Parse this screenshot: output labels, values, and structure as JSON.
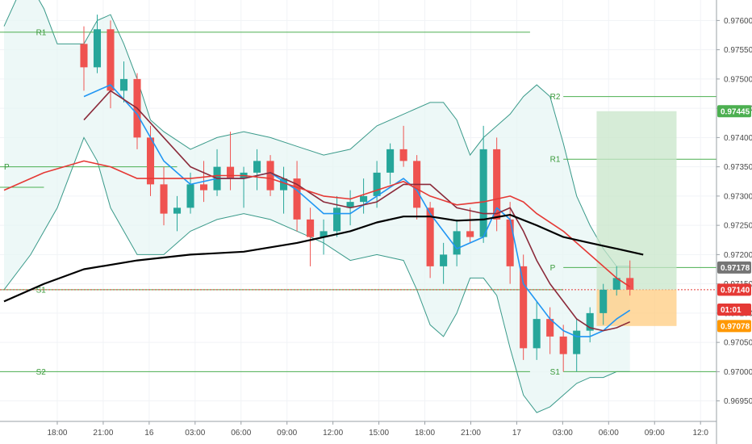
{
  "chart_data": {
    "type": "candlestick",
    "x_ticks": [
      "18:00",
      "21:00",
      "16",
      "03:00",
      "06:00",
      "09:00",
      "12:00",
      "15:00",
      "18:00",
      "21:00",
      "17",
      "03:00",
      "06:00",
      "09:00",
      "12:0"
    ],
    "y_ticks": [
      "0.97600",
      "0.97550",
      "0.97500",
      "0.97450",
      "0.97400",
      "0.97350",
      "0.97300",
      "0.97250",
      "0.97200",
      "0.97150",
      "0.97100",
      "0.97050",
      "0.97000",
      "0.96950"
    ],
    "ylim": [
      0.96915,
      0.97635
    ],
    "x_domain": [
      -6.3,
      47.5
    ],
    "candles": [
      [
        0,
        0.9756,
        0.9759,
        0.9748,
        0.9752
      ],
      [
        1,
        0.9752,
        0.9761,
        0.9751,
        0.97585
      ],
      [
        2,
        0.97585,
        0.976,
        0.9745,
        0.9748
      ],
      [
        3,
        0.9748,
        0.9753,
        0.9746,
        0.975
      ],
      [
        4,
        0.975,
        0.9751,
        0.9738,
        0.974
      ],
      [
        5,
        0.974,
        0.9742,
        0.973,
        0.9732
      ],
      [
        6,
        0.9732,
        0.9735,
        0.9725,
        0.9727
      ],
      [
        7,
        0.9727,
        0.973,
        0.9724,
        0.9728
      ],
      [
        8,
        0.9728,
        0.9734,
        0.9727,
        0.9732
      ],
      [
        9,
        0.9732,
        0.9736,
        0.9729,
        0.9731
      ],
      [
        10,
        0.9731,
        0.9738,
        0.973,
        0.9735
      ],
      [
        11,
        0.9735,
        0.9741,
        0.9731,
        0.9733
      ],
      [
        12,
        0.9733,
        0.9735,
        0.9728,
        0.9734
      ],
      [
        13,
        0.9734,
        0.9738,
        0.9731,
        0.9736
      ],
      [
        14,
        0.9736,
        0.9737,
        0.973,
        0.9731
      ],
      [
        15,
        0.9731,
        0.9735,
        0.9727,
        0.9733
      ],
      [
        16,
        0.9733,
        0.9736,
        0.9724,
        0.9726
      ],
      [
        17,
        0.9726,
        0.9728,
        0.9718,
        0.9723
      ],
      [
        18,
        0.9723,
        0.9726,
        0.972,
        0.9724
      ],
      [
        19,
        0.9724,
        0.973,
        0.9723,
        0.9728
      ],
      [
        20,
        0.9728,
        0.9731,
        0.9725,
        0.9729
      ],
      [
        21,
        0.9729,
        0.9733,
        0.9727,
        0.973
      ],
      [
        22,
        0.973,
        0.9736,
        0.9728,
        0.9734
      ],
      [
        23,
        0.9734,
        0.9739,
        0.9732,
        0.9738
      ],
      [
        24,
        0.9738,
        0.9742,
        0.9735,
        0.9736
      ],
      [
        25,
        0.9736,
        0.9737,
        0.9726,
        0.9728
      ],
      [
        26,
        0.9728,
        0.9729,
        0.9716,
        0.9718
      ],
      [
        27,
        0.9718,
        0.9722,
        0.9715,
        0.972
      ],
      [
        28,
        0.972,
        0.9726,
        0.9718,
        0.9724
      ],
      [
        29,
        0.9724,
        0.9728,
        0.9722,
        0.9723
      ],
      [
        30,
        0.9723,
        0.9742,
        0.9722,
        0.9738
      ],
      [
        31,
        0.9738,
        0.974,
        0.9724,
        0.9726
      ],
      [
        32,
        0.9726,
        0.9729,
        0.9715,
        0.9718
      ],
      [
        33,
        0.9718,
        0.972,
        0.9702,
        0.9704
      ],
      [
        34,
        0.9704,
        0.9712,
        0.9702,
        0.9709
      ],
      [
        35,
        0.9709,
        0.9711,
        0.9703,
        0.9706
      ],
      [
        36,
        0.9706,
        0.9708,
        0.97,
        0.9703
      ],
      [
        37,
        0.9703,
        0.9709,
        0.97,
        0.9707
      ],
      [
        38,
        0.9707,
        0.9711,
        0.9705,
        0.971
      ],
      [
        39,
        0.971,
        0.9715,
        0.9708,
        0.9714
      ],
      [
        40,
        0.9714,
        0.9718,
        0.9713,
        0.9716
      ],
      [
        41,
        0.9716,
        0.9719,
        0.9713,
        0.9714
      ]
    ],
    "series": [
      {
        "color": "#2196f3",
        "points": [
          [
            0,
            0.9747
          ],
          [
            2,
            0.9749
          ],
          [
            4,
            0.9744
          ],
          [
            6,
            0.9736
          ],
          [
            8,
            0.9732
          ],
          [
            10,
            0.9733
          ],
          [
            12,
            0.9733
          ],
          [
            14,
            0.9734
          ],
          [
            16,
            0.9731
          ],
          [
            18,
            0.9727
          ],
          [
            20,
            0.9727
          ],
          [
            22,
            0.973
          ],
          [
            24,
            0.9733
          ],
          [
            25,
            0.9731
          ],
          [
            26,
            0.9727
          ],
          [
            28,
            0.9721
          ],
          [
            30,
            0.9723
          ],
          [
            31,
            0.9728
          ],
          [
            32,
            0.9726
          ],
          [
            33,
            0.9715
          ],
          [
            34,
            0.9712
          ],
          [
            35,
            0.9709
          ],
          [
            36,
            0.9707
          ],
          [
            37,
            0.9706
          ],
          [
            38,
            0.9706
          ],
          [
            39,
            0.9707
          ],
          [
            40,
            0.9709
          ],
          [
            41,
            0.97105
          ]
        ]
      },
      {
        "color": "#8b2a3a",
        "points": [
          [
            0,
            0.9743
          ],
          [
            2,
            0.9748
          ],
          [
            4,
            0.9745
          ],
          [
            6,
            0.974
          ],
          [
            8,
            0.9735
          ],
          [
            10,
            0.9733
          ],
          [
            12,
            0.9733
          ],
          [
            14,
            0.9734
          ],
          [
            16,
            0.9732
          ],
          [
            18,
            0.9729
          ],
          [
            20,
            0.9728
          ],
          [
            22,
            0.9729
          ],
          [
            24,
            0.9732
          ],
          [
            26,
            0.9732
          ],
          [
            28,
            0.9728
          ],
          [
            30,
            0.9727
          ],
          [
            31,
            0.9727
          ],
          [
            32,
            0.9728
          ],
          [
            33,
            0.9724
          ],
          [
            34,
            0.9719
          ],
          [
            35,
            0.9715
          ],
          [
            36,
            0.9712
          ],
          [
            37,
            0.9709
          ],
          [
            38,
            0.97075
          ],
          [
            39,
            0.9707
          ],
          [
            40,
            0.97075
          ],
          [
            41,
            0.97085
          ]
        ]
      },
      {
        "color": "#e53935",
        "points": [
          [
            -6,
            0.9731
          ],
          [
            -3,
            0.9734
          ],
          [
            0,
            0.9736
          ],
          [
            2,
            0.9735
          ],
          [
            4,
            0.9733
          ],
          [
            6,
            0.9733
          ],
          [
            8,
            0.9733
          ],
          [
            10,
            0.97335
          ],
          [
            12,
            0.97335
          ],
          [
            14,
            0.9733
          ],
          [
            16,
            0.97315
          ],
          [
            18,
            0.973
          ],
          [
            20,
            0.97295
          ],
          [
            22,
            0.9731
          ],
          [
            24,
            0.97325
          ],
          [
            26,
            0.973
          ],
          [
            28,
            0.97285
          ],
          [
            30,
            0.9729
          ],
          [
            32,
            0.973
          ],
          [
            33,
            0.9729
          ],
          [
            34,
            0.9727
          ],
          [
            36,
            0.9724
          ],
          [
            38,
            0.972
          ],
          [
            40,
            0.9716
          ],
          [
            41,
            0.97145
          ]
        ]
      },
      {
        "color": "#000000",
        "points": [
          [
            -6,
            0.9712
          ],
          [
            -3,
            0.9715
          ],
          [
            0,
            0.97175
          ],
          [
            4,
            0.9719
          ],
          [
            8,
            0.972
          ],
          [
            12,
            0.97205
          ],
          [
            16,
            0.9722
          ],
          [
            20,
            0.9724
          ],
          [
            22,
            0.97255
          ],
          [
            24,
            0.97265
          ],
          [
            26,
            0.97265
          ],
          [
            28,
            0.97258
          ],
          [
            30,
            0.9726
          ],
          [
            32,
            0.97268
          ],
          [
            34,
            0.9725
          ],
          [
            36,
            0.9723
          ],
          [
            38,
            0.9722
          ],
          [
            40,
            0.9721
          ],
          [
            42,
            0.972
          ]
        ]
      }
    ],
    "bollinger_upper": [
      [
        -6,
        0.9759
      ],
      [
        -5,
        0.9764
      ],
      [
        -4,
        0.9766
      ],
      [
        -3,
        0.9762
      ],
      [
        -2,
        0.9756
      ],
      [
        0,
        0.9756
      ],
      [
        1,
        0.976
      ],
      [
        2,
        0.9761
      ],
      [
        3,
        0.9756
      ],
      [
        4,
        0.975
      ],
      [
        5,
        0.9743
      ],
      [
        6,
        0.9741
      ],
      [
        8,
        0.9738
      ],
      [
        10,
        0.974
      ],
      [
        12,
        0.9741
      ],
      [
        14,
        0.974
      ],
      [
        16,
        0.97385
      ],
      [
        18,
        0.9737
      ],
      [
        20,
        0.9738
      ],
      [
        22,
        0.9742
      ],
      [
        24,
        0.9744
      ],
      [
        26,
        0.9746
      ],
      [
        27,
        0.9746
      ],
      [
        28,
        0.9743
      ],
      [
        29,
        0.9737
      ],
      [
        30,
        0.974
      ],
      [
        31,
        0.9742
      ],
      [
        32,
        0.9744
      ],
      [
        33,
        0.9747
      ],
      [
        34,
        0.9749
      ],
      [
        35,
        0.9747
      ],
      [
        36,
        0.9739
      ],
      [
        37,
        0.973
      ],
      [
        38,
        0.9725
      ],
      [
        39,
        0.9721
      ],
      [
        40,
        0.9718
      ],
      [
        41,
        0.9718
      ]
    ],
    "bollinger_lower": [
      [
        41,
        0.97
      ],
      [
        40,
        0.97
      ],
      [
        39,
        0.9699
      ],
      [
        38,
        0.9699
      ],
      [
        37,
        0.9698
      ],
      [
        36,
        0.9696
      ],
      [
        35,
        0.9694
      ],
      [
        34,
        0.9693
      ],
      [
        33,
        0.9696
      ],
      [
        32,
        0.9704
      ],
      [
        31,
        0.9713
      ],
      [
        30,
        0.9716
      ],
      [
        29,
        0.9716
      ],
      [
        28,
        0.971
      ],
      [
        27,
        0.9706
      ],
      [
        26,
        0.9708
      ],
      [
        25,
        0.9714
      ],
      [
        24,
        0.9719
      ],
      [
        22,
        0.972
      ],
      [
        20,
        0.9719
      ],
      [
        18,
        0.9722
      ],
      [
        16,
        0.9724
      ],
      [
        14,
        0.9726
      ],
      [
        12,
        0.9727
      ],
      [
        10,
        0.9726
      ],
      [
        8,
        0.9724
      ],
      [
        6,
        0.972
      ],
      [
        4,
        0.972
      ],
      [
        2,
        0.9728
      ],
      [
        1,
        0.9736
      ],
      [
        0,
        0.974
      ],
      [
        -2,
        0.9728
      ],
      [
        -4,
        0.972
      ],
      [
        -6,
        0.9714
      ]
    ],
    "pivot_lines": [
      {
        "label": "R1",
        "value": 0.9758,
        "x_start": -6.3,
        "x_end": 33.5,
        "label_x": -3.6
      },
      {
        "label": "R2",
        "value": 0.9747,
        "x_start": 36.0,
        "x_end": 47.5,
        "label_x": 35.0
      },
      {
        "label": "P",
        "value": 0.9735,
        "x_start": -6.3,
        "x_end": 7.0,
        "label_x": -6.0
      },
      {
        "label": "R1",
        "value": 0.97363,
        "x_start": 36.0,
        "x_end": 47.5,
        "label_x": 35.0
      },
      {
        "label": "",
        "value": 0.97315,
        "x_start": -6.3,
        "x_end": -3.0,
        "label_x": -6.0
      },
      {
        "label": "P",
        "value": 0.97178,
        "x_start": 36.0,
        "x_end": 47.5,
        "label_x": 35.0
      },
      {
        "label": "S1",
        "value": 0.9714,
        "x_start": -6.3,
        "x_end": 36.0,
        "label_x": -3.6
      },
      {
        "label": "S2",
        "value": 0.97,
        "x_start": -6.3,
        "x_end": 33.5,
        "label_x": -3.6
      },
      {
        "label": "S1",
        "value": 0.97,
        "x_start": 36.0,
        "x_end": 47.5,
        "label_x": 35.0
      }
    ],
    "position": {
      "entry": 0.9714,
      "target": 0.97445,
      "stop": 0.97078,
      "x_start": 38.5,
      "x_end": 44.5
    },
    "price_badges": [
      {
        "text": "0.97445",
        "value": 0.97445,
        "color": "#4caf50"
      },
      {
        "text": "0.97178",
        "value": 0.97178,
        "color": "#757575"
      },
      {
        "text": "0.97140",
        "value": 0.9714,
        "color": "#e53935"
      },
      {
        "text": "01:01",
        "value": 0.97106,
        "color": "#e53935"
      },
      {
        "text": "0.97078",
        "value": 0.97078,
        "color": "#ff9800"
      }
    ]
  }
}
